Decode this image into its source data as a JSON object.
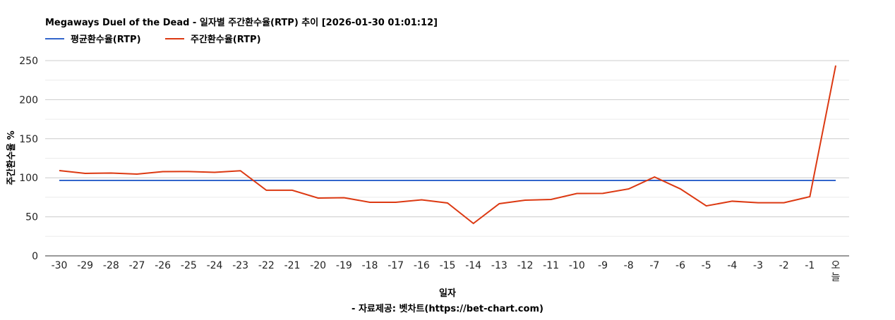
{
  "chart_data": {
    "type": "line",
    "title": "Megaways Duel of the Dead - 일자별 주간환수율(RTP) 추이 [2026-01-30 01:01:12]",
    "xlabel": "일자",
    "ylabel": "주간환수율 %",
    "footer": "- 자료제공: 벳차트(https://bet-chart.com)",
    "legend_position": "top-left",
    "grid": true,
    "ylim": [
      0,
      250
    ],
    "yticks": [
      0,
      50,
      100,
      150,
      200,
      250
    ],
    "categories": [
      "-30",
      "-29",
      "-28",
      "-27",
      "-26",
      "-25",
      "-24",
      "-23",
      "-22",
      "-21",
      "-20",
      "-19",
      "-18",
      "-17",
      "-16",
      "-15",
      "-14",
      "-13",
      "-12",
      "-11",
      "-10",
      "-9",
      "-8",
      "-7",
      "-6",
      "-5",
      "-4",
      "-3",
      "-2",
      "-1",
      "오늘"
    ],
    "series": [
      {
        "name": "평균환수율(RTP)",
        "color": "#3366cc",
        "values": [
          96.6,
          96.6,
          96.6,
          96.6,
          96.6,
          96.6,
          96.6,
          96.6,
          96.6,
          96.6,
          96.6,
          96.6,
          96.6,
          96.6,
          96.6,
          96.6,
          96.6,
          96.6,
          96.6,
          96.6,
          96.6,
          96.6,
          96.6,
          96.6,
          96.6,
          96.6,
          96.6,
          96.6,
          96.6,
          96.6,
          96.6
        ]
      },
      {
        "name": "주간환수율(RTP)",
        "color": "#dc3912",
        "values": [
          109.2,
          105.6,
          106,
          104.7,
          107.9,
          108,
          107,
          109,
          84,
          84,
          74,
          74.5,
          68.6,
          68.6,
          71.8,
          67.7,
          41.5,
          66.8,
          71.3,
          72.2,
          79.9,
          80,
          85.7,
          101,
          85.7,
          64,
          70,
          68,
          68,
          75.8,
          243.7
        ]
      }
    ]
  }
}
